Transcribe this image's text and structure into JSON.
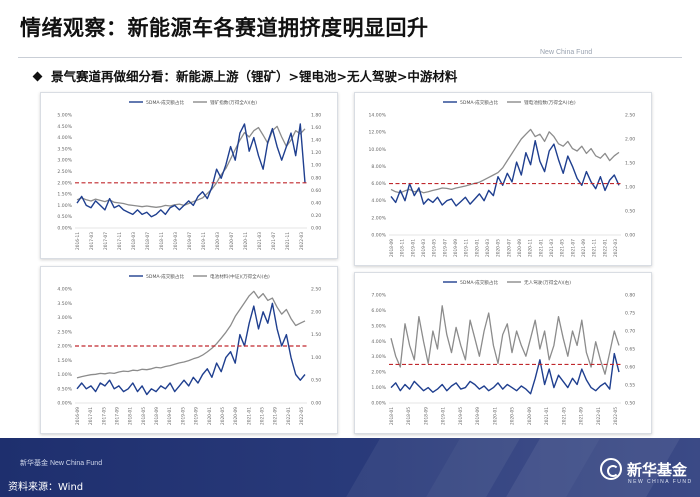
{
  "page": {
    "title": "情绪观察：新能源车各赛道拥挤度明显回升",
    "brand_top": "New China Fund",
    "bullet": "景气赛道再做细分看：新能源上游（锂矿）>锂电池>无人驾驶>中游材料",
    "footer_brand": "新华基金 New China Fund",
    "source": "资料来源：Wind",
    "logo_text": "新华基金",
    "logo_sub": "NEW CHINA FUND"
  },
  "colors": {
    "primary": "#1f3f8f",
    "secondary": "#8c8c8c",
    "threshold": "#c0282d",
    "footer": "#23347a"
  },
  "chart_data": [
    {
      "id": "upstream-lithium",
      "type": "line",
      "legend": [
        "5DMA-成交额占比",
        "锂矿指数(万得全A)(右)"
      ],
      "left_ticks": [
        "5.00%",
        "4.50%",
        "4.00%",
        "3.50%",
        "3.00%",
        "2.50%",
        "2.00%",
        "1.50%",
        "1.00%",
        "0.50%",
        "0.00%"
      ],
      "left_range": [
        0,
        5
      ],
      "right_ticks": [
        "1.80",
        "1.60",
        "1.40",
        "1.20",
        "1.00",
        "0.80",
        "0.60",
        "0.40",
        "0.20",
        "0.00"
      ],
      "right_range": [
        0,
        1.8
      ],
      "x_ticks": [
        "2016-11",
        "2017-03",
        "2017-07",
        "2017-11",
        "2018-03",
        "2018-07",
        "2018-11",
        "2019-03",
        "2019-07",
        "2019-11",
        "2020-03",
        "2020-07",
        "2020-11",
        "2021-03",
        "2021-07",
        "2021-11",
        "2022-03"
      ],
      "threshold": 2.0,
      "series_left": [
        1.1,
        1.4,
        1.0,
        0.9,
        1.2,
        1.0,
        0.8,
        1.3,
        0.9,
        1.0,
        0.8,
        0.7,
        0.6,
        0.8,
        0.6,
        0.7,
        0.5,
        0.6,
        0.8,
        0.6,
        0.9,
        1.0,
        0.8,
        1.0,
        1.2,
        1.0,
        1.4,
        1.6,
        1.3,
        1.8,
        2.6,
        2.2,
        2.8,
        3.6,
        3.0,
        4.2,
        4.6,
        3.4,
        4.0,
        3.2,
        2.6,
        3.8,
        4.4,
        3.6,
        3.0,
        3.6,
        4.2,
        3.2,
        4.6,
        2.0
      ],
      "series_right": [
        0.45,
        0.48,
        0.45,
        0.43,
        0.46,
        0.44,
        0.42,
        0.45,
        0.41,
        0.4,
        0.39,
        0.37,
        0.36,
        0.35,
        0.34,
        0.35,
        0.34,
        0.33,
        0.34,
        0.36,
        0.35,
        0.37,
        0.38,
        0.36,
        0.39,
        0.42,
        0.45,
        0.48,
        0.55,
        0.62,
        0.72,
        0.85,
        0.95,
        1.1,
        1.25,
        1.4,
        1.52,
        1.45,
        1.55,
        1.6,
        1.48,
        1.35,
        1.55,
        1.62,
        1.45,
        1.3,
        1.4,
        1.55,
        1.5,
        1.58
      ]
    },
    {
      "id": "lithium-battery",
      "type": "line",
      "legend": [
        "5DMA-成交额占比",
        "锂电池指数(万得全A)(右)"
      ],
      "left_ticks": [
        "14.00%",
        "12.00%",
        "10.00%",
        "8.00%",
        "6.00%",
        "4.00%",
        "2.00%",
        "0.00%"
      ],
      "left_range": [
        0,
        14
      ],
      "right_ticks": [
        "2.50",
        "2.00",
        "1.50",
        "1.00",
        "0.50",
        "0.00"
      ],
      "right_range": [
        0,
        2.5
      ],
      "x_ticks": [
        "2018-09",
        "2018-11",
        "2019-01",
        "2019-03",
        "2019-05",
        "2019-07",
        "2019-09",
        "2019-11",
        "2020-01",
        "2020-03",
        "2020-05",
        "2020-07",
        "2020-09",
        "2020-11",
        "2021-01",
        "2021-03",
        "2021-05",
        "2021-07",
        "2021-09",
        "2021-11",
        "2022-01",
        "2022-03"
      ],
      "threshold": 6.0,
      "series_left": [
        4.5,
        3.8,
        5.2,
        4.0,
        6.0,
        4.6,
        5.5,
        3.6,
        4.2,
        3.8,
        4.4,
        3.5,
        4.0,
        4.2,
        3.4,
        3.9,
        4.4,
        3.6,
        4.2,
        4.8,
        4.0,
        5.2,
        4.6,
        6.8,
        5.8,
        7.2,
        6.2,
        8.5,
        7.0,
        9.6,
        8.2,
        11.0,
        8.6,
        7.4,
        9.8,
        10.6,
        8.8,
        7.2,
        9.2,
        8.0,
        6.6,
        5.8,
        7.4,
        6.2,
        5.4,
        6.8,
        5.2,
        6.4,
        7.0,
        5.8
      ],
      "series_right": [
        0.95,
        0.9,
        0.88,
        0.92,
        0.95,
        0.9,
        0.92,
        0.88,
        0.9,
        0.93,
        0.95,
        0.98,
        0.97,
        0.95,
        0.98,
        1.0,
        1.02,
        1.05,
        1.08,
        1.1,
        1.15,
        1.2,
        1.25,
        1.3,
        1.4,
        1.55,
        1.7,
        1.85,
        2.0,
        2.1,
        2.2,
        2.05,
        2.1,
        1.95,
        2.15,
        2.05,
        1.9,
        1.85,
        1.95,
        1.8,
        1.75,
        1.85,
        1.7,
        1.8,
        1.65,
        1.6,
        1.7,
        1.55,
        1.65,
        1.72
      ]
    },
    {
      "id": "midstream-materials",
      "type": "line",
      "legend": [
        "5DMA-成交额占比",
        "电池材料(中证)(万得全A)(右)"
      ],
      "left_ticks": [
        "4.00%",
        "3.50%",
        "3.00%",
        "2.50%",
        "2.00%",
        "1.50%",
        "1.00%",
        "0.50%",
        "0.00%"
      ],
      "left_range": [
        0,
        4
      ],
      "right_ticks": [
        "2.50",
        "2.00",
        "1.50",
        "1.00",
        "0.50",
        "0.00"
      ],
      "right_range": [
        0,
        2.5
      ],
      "x_ticks": [
        "2016-09",
        "2017-01",
        "2017-05",
        "2017-09",
        "2018-01",
        "2018-05",
        "2018-09",
        "2019-01",
        "2019-05",
        "2019-09",
        "2020-01",
        "2020-05",
        "2020-09",
        "2021-01",
        "2021-05",
        "2021-09",
        "2022-01",
        "2022-05"
      ],
      "threshold": 2.0,
      "series_left": [
        0.5,
        0.7,
        0.5,
        0.6,
        0.4,
        0.7,
        0.6,
        0.8,
        0.5,
        0.6,
        0.4,
        0.5,
        0.7,
        0.4,
        0.6,
        0.3,
        0.5,
        0.4,
        0.6,
        0.5,
        0.7,
        0.4,
        0.6,
        0.8,
        0.6,
        0.9,
        0.7,
        1.0,
        1.2,
        0.9,
        1.4,
        1.1,
        1.6,
        1.8,
        1.4,
        2.4,
        2.0,
        2.8,
        3.4,
        2.6,
        3.2,
        2.8,
        3.5,
        2.6,
        2.0,
        2.4,
        1.6,
        1.0,
        0.8,
        1.0
      ],
      "series_right": [
        0.55,
        0.58,
        0.6,
        0.62,
        0.63,
        0.65,
        0.64,
        0.66,
        0.65,
        0.68,
        0.7,
        0.69,
        0.72,
        0.71,
        0.74,
        0.73,
        0.75,
        0.78,
        0.77,
        0.8,
        0.82,
        0.85,
        0.88,
        0.9,
        0.93,
        0.97,
        1.0,
        1.05,
        1.12,
        1.2,
        1.3,
        1.42,
        1.55,
        1.7,
        1.9,
        2.05,
        2.2,
        2.35,
        2.45,
        2.3,
        2.4,
        2.25,
        2.3,
        2.1,
        1.95,
        2.05,
        1.85,
        1.7,
        1.75,
        1.8
      ]
    },
    {
      "id": "autonomous-driving",
      "type": "line",
      "legend": [
        "5DMA-成交额占比",
        "无人驾驶(万得全A)(右)"
      ],
      "left_ticks": [
        "7.00%",
        "6.00%",
        "5.00%",
        "4.00%",
        "3.00%",
        "2.00%",
        "1.00%",
        "0.00%"
      ],
      "left_range": [
        0,
        7
      ],
      "right_ticks": [
        "0.80",
        "0.75",
        "0.70",
        "0.65",
        "0.60",
        "0.55",
        "0.50"
      ],
      "right_range": [
        0.5,
        0.8
      ],
      "x_ticks": [
        "2018-01",
        "2018-05",
        "2018-09",
        "2019-01",
        "2019-05",
        "2019-09",
        "2020-01",
        "2020-05",
        "2020-09",
        "2021-01",
        "2021-05",
        "2021-09",
        "2022-01",
        "2022-05"
      ],
      "threshold": 2.5,
      "series_left": [
        1.0,
        1.3,
        0.8,
        1.2,
        0.9,
        1.4,
        1.1,
        0.8,
        1.0,
        0.7,
        0.9,
        1.2,
        0.8,
        1.1,
        1.3,
        0.9,
        1.0,
        1.4,
        1.2,
        0.9,
        1.1,
        0.8,
        1.0,
        1.3,
        0.9,
        1.2,
        1.0,
        0.8,
        1.1,
        0.9,
        0.6,
        1.6,
        2.8,
        1.2,
        2.2,
        1.0,
        1.8,
        1.4,
        1.0,
        1.6,
        1.2,
        2.2,
        1.5,
        1.0,
        0.8,
        1.1,
        1.3,
        0.9,
        3.2,
        2.0
      ],
      "series_right": [
        0.68,
        0.63,
        0.6,
        0.72,
        0.66,
        0.62,
        0.74,
        0.67,
        0.61,
        0.7,
        0.65,
        0.77,
        0.69,
        0.64,
        0.71,
        0.66,
        0.62,
        0.73,
        0.68,
        0.63,
        0.7,
        0.75,
        0.66,
        0.61,
        0.69,
        0.72,
        0.64,
        0.7,
        0.66,
        0.63,
        0.68,
        0.73,
        0.65,
        0.7,
        0.62,
        0.66,
        0.74,
        0.68,
        0.63,
        0.7,
        0.66,
        0.73,
        0.64,
        0.6,
        0.67,
        0.62,
        0.58,
        0.64,
        0.7,
        0.66
      ]
    }
  ]
}
